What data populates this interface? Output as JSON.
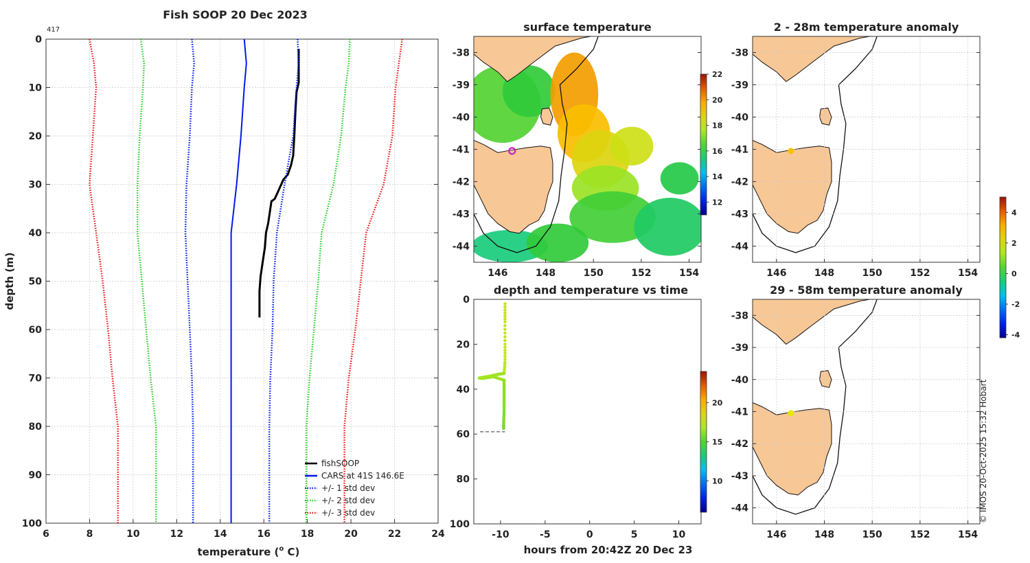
{
  "chart_data": [
    {
      "type": "line",
      "title": "Fish SOOP 20 Dec 2023",
      "corner_label": "417",
      "xlabel": "temperature (",
      "xlabel_sup": "o",
      "xlabel_tail": " C)",
      "ylabel": "depth (m)",
      "xlim": [
        6,
        24
      ],
      "ylim": [
        100,
        0
      ],
      "xticks": [
        6,
        8,
        10,
        12,
        14,
        16,
        18,
        20,
        22,
        24
      ],
      "yticks": [
        0,
        10,
        20,
        30,
        40,
        50,
        60,
        70,
        80,
        90,
        100
      ],
      "legend": [
        "fishSOOP",
        "CARS at 41S 146.6E",
        "+/- 1 std dev",
        "+/- 2 std dev",
        "+/- 3 std dev"
      ],
      "series": [
        {
          "name": "fishSOOP",
          "color": "#000000",
          "style": "solid",
          "points": [
            [
              17.6,
              2
            ],
            [
              17.6,
              9
            ],
            [
              17.5,
              11
            ],
            [
              17.45,
              15
            ],
            [
              17.4,
              20
            ],
            [
              17.35,
              24
            ],
            [
              17.25,
              26
            ],
            [
              17.1,
              28
            ],
            [
              16.9,
              29
            ],
            [
              16.6,
              32
            ],
            [
              16.5,
              33
            ],
            [
              16.35,
              33.5
            ],
            [
              16.3,
              35
            ],
            [
              16.2,
              38
            ],
            [
              16.1,
              40
            ],
            [
              16.05,
              43
            ],
            [
              15.95,
              46
            ],
            [
              15.85,
              49
            ],
            [
              15.8,
              52
            ],
            [
              15.8,
              57.5
            ]
          ]
        },
        {
          "name": "CARS at 41S 146.6E",
          "color": "#0018e8",
          "style": "solid",
          "points": [
            [
              15.1,
              0
            ],
            [
              15.2,
              5
            ],
            [
              15.1,
              10
            ],
            [
              14.95,
              20
            ],
            [
              14.75,
              30
            ],
            [
              14.5,
              40
            ],
            [
              14.5,
              100
            ]
          ]
        },
        {
          "name": "+1 std dev",
          "color": "#0018e8",
          "style": "dotted",
          "points": [
            [
              17.55,
              0
            ],
            [
              17.6,
              5
            ],
            [
              17.5,
              10
            ],
            [
              17.35,
              20
            ],
            [
              16.95,
              30
            ],
            [
              16.6,
              40
            ],
            [
              16.45,
              50
            ],
            [
              16.4,
              60
            ],
            [
              16.3,
              70
            ],
            [
              16.25,
              80
            ],
            [
              16.25,
              90
            ],
            [
              16.25,
              100
            ]
          ]
        },
        {
          "name": "-1 std dev",
          "color": "#0018e8",
          "style": "dotted",
          "points": [
            [
              12.7,
              0
            ],
            [
              12.8,
              5
            ],
            [
              12.7,
              10
            ],
            [
              12.6,
              20
            ],
            [
              12.45,
              30
            ],
            [
              12.4,
              40
            ],
            [
              12.5,
              50
            ],
            [
              12.6,
              60
            ],
            [
              12.7,
              70
            ],
            [
              12.75,
              80
            ],
            [
              12.75,
              90
            ],
            [
              12.75,
              100
            ]
          ]
        },
        {
          "name": "+2 std dev",
          "color": "#22cc22",
          "style": "dotted",
          "points": [
            [
              19.95,
              0
            ],
            [
              19.9,
              5
            ],
            [
              19.75,
              10
            ],
            [
              19.55,
              20
            ],
            [
              19.2,
              30
            ],
            [
              18.65,
              40
            ],
            [
              18.5,
              50
            ],
            [
              18.3,
              60
            ],
            [
              18.1,
              70
            ],
            [
              17.95,
              80
            ],
            [
              17.95,
              90
            ],
            [
              17.95,
              100
            ]
          ]
        },
        {
          "name": "-2 std dev",
          "color": "#22cc22",
          "style": "dotted",
          "points": [
            [
              10.35,
              0
            ],
            [
              10.5,
              5
            ],
            [
              10.45,
              10
            ],
            [
              10.3,
              20
            ],
            [
              10.2,
              30
            ],
            [
              10.2,
              40
            ],
            [
              10.4,
              50
            ],
            [
              10.6,
              60
            ],
            [
              10.8,
              70
            ],
            [
              11.05,
              80
            ],
            [
              11.05,
              90
            ],
            [
              11.05,
              100
            ]
          ]
        },
        {
          "name": "+3 std dev",
          "color": "#ee1111",
          "style": "dotted",
          "points": [
            [
              22.35,
              0
            ],
            [
              22.2,
              5
            ],
            [
              22.05,
              10
            ],
            [
              21.9,
              20
            ],
            [
              21.5,
              30
            ],
            [
              20.7,
              40
            ],
            [
              20.45,
              50
            ],
            [
              20.2,
              60
            ],
            [
              19.9,
              70
            ],
            [
              19.7,
              80
            ],
            [
              19.7,
              90
            ],
            [
              19.7,
              100
            ]
          ]
        },
        {
          "name": "-3 std dev",
          "color": "#ee1111",
          "style": "dotted",
          "points": [
            [
              8.0,
              0
            ],
            [
              8.2,
              5
            ],
            [
              8.3,
              10
            ],
            [
              8.15,
              20
            ],
            [
              8.0,
              30
            ],
            [
              8.3,
              40
            ],
            [
              8.6,
              50
            ],
            [
              8.85,
              60
            ],
            [
              9.05,
              70
            ],
            [
              9.3,
              80
            ],
            [
              9.3,
              90
            ],
            [
              9.3,
              100
            ]
          ]
        }
      ]
    },
    {
      "type": "heatmap",
      "title": "surface temperature",
      "xlim": [
        145,
        154.5
      ],
      "ylim": [
        -44.5,
        -37.5
      ],
      "xticks": [
        146,
        148,
        150,
        152,
        154
      ],
      "yticks": [
        -38,
        -39,
        -40,
        -41,
        -42,
        -43,
        -44
      ],
      "colorbar_range": [
        11,
        22
      ],
      "colorbar_ticks": [
        12,
        14,
        16,
        18,
        20,
        22
      ],
      "marker": {
        "lon": 146.6,
        "lat": -41.05,
        "color": "#d020c0"
      }
    },
    {
      "type": "scatter",
      "title": "depth and temperature vs time",
      "xlabel": "hours from 20:42Z 20 Dec 23",
      "xlim": [
        -13,
        12.5
      ],
      "ylim": [
        100,
        0
      ],
      "xticks": [
        -10,
        -5,
        0,
        5,
        10
      ],
      "yticks": [
        0,
        20,
        40,
        60,
        80,
        100
      ],
      "colorbar_range": [
        6,
        24
      ],
      "colorbar_ticks": [
        10,
        15,
        20
      ],
      "points": [
        [
          -9.5,
          2,
          17.6
        ],
        [
          -9.5,
          10,
          17.5
        ],
        [
          -9.5,
          20,
          17.4
        ],
        [
          -9.5,
          28,
          17.1
        ],
        [
          -9.6,
          33,
          16.4
        ],
        [
          -10.4,
          33.5,
          16.5
        ],
        [
          -11.2,
          34.2,
          16.6
        ],
        [
          -12.4,
          35,
          16.7
        ],
        [
          -12.0,
          35.2,
          16.6
        ],
        [
          -10.8,
          34.5,
          16.5
        ],
        [
          -9.6,
          36,
          16.2
        ],
        [
          -9.6,
          40,
          16.1
        ],
        [
          -9.6,
          45,
          16.0
        ],
        [
          -9.6,
          50,
          15.9
        ],
        [
          -9.65,
          55,
          15.8
        ],
        [
          -9.65,
          58,
          15.8
        ]
      ],
      "bottom_depth": 59,
      "bottom_x": [
        -12.3,
        -9.5
      ]
    },
    {
      "type": "map",
      "title": "2 - 28m temperature anomaly",
      "xlim": [
        145,
        154.5
      ],
      "ylim": [
        -44.5,
        -37.5
      ],
      "xticks": [
        146,
        148,
        150,
        152,
        154
      ],
      "yticks": [
        -38,
        -39,
        -40,
        -41,
        -42,
        -43,
        -44
      ],
      "marker": {
        "lon": 146.6,
        "lat": -41.05,
        "value": 2.3,
        "color": "#f5c400"
      }
    },
    {
      "type": "map",
      "title": "29 - 58m temperature anomaly",
      "xlim": [
        145,
        154.5
      ],
      "ylim": [
        -44.5,
        -37.5
      ],
      "xticks": [
        146,
        148,
        150,
        152,
        154
      ],
      "yticks": [
        -38,
        -39,
        -40,
        -41,
        -42,
        -43,
        -44
      ],
      "marker": {
        "lon": 146.6,
        "lat": -41.05,
        "value": 1.9,
        "color": "#e8e800"
      }
    },
    {
      "type": "colorbar",
      "range": [
        -4.2,
        5
      ],
      "ticks": [
        -4,
        -2,
        0,
        2,
        4
      ]
    }
  ],
  "credit": "© IMOS 20-Oct-2025 15:32 Hobart"
}
